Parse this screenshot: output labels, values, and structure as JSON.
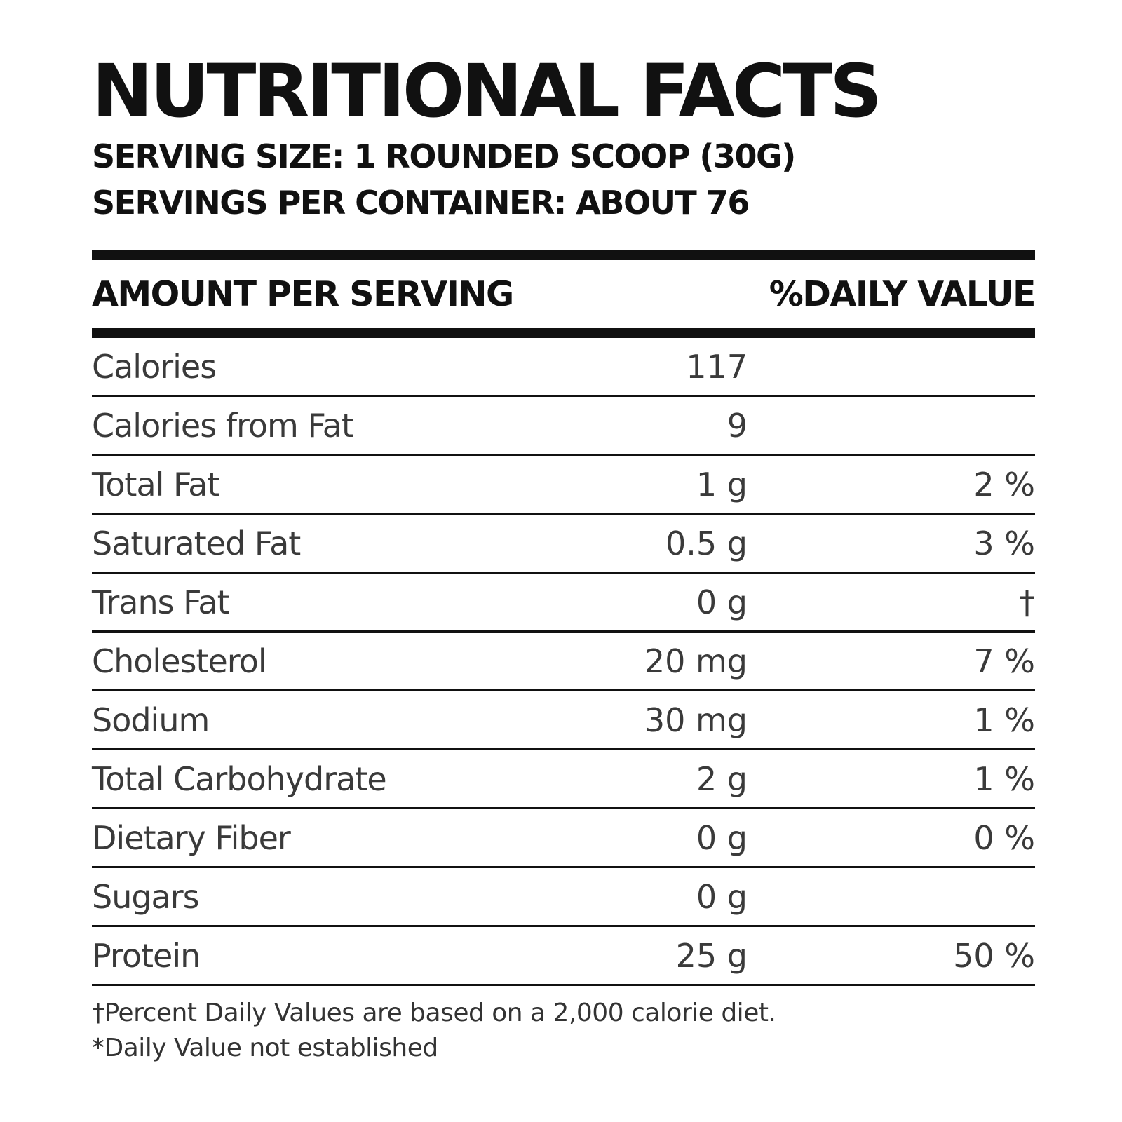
{
  "title": "NUTRITIONAL FACTS",
  "serving_size": "SERVING SIZE: 1 ROUNDED SCOOP (30G)",
  "servings_per_container": "SERVINGS PER CONTAINER: ABOUT 76",
  "header": {
    "amount_label": "AMOUNT PER SERVING",
    "daily_value_label": "%DAILY VALUE"
  },
  "nutrients": [
    {
      "name": "Calories",
      "amount": "117",
      "dv": ""
    },
    {
      "name": "Calories from Fat",
      "amount": "9",
      "dv": ""
    },
    {
      "name": "Total Fat",
      "amount": "1 g",
      "dv": "2 %"
    },
    {
      "name": "Saturated Fat",
      "amount": "0.5 g",
      "dv": "3 %"
    },
    {
      "name": "Trans Fat",
      "amount": "0 g",
      "dv": "†"
    },
    {
      "name": "Cholesterol",
      "amount": "20 mg",
      "dv": "7 %"
    },
    {
      "name": "Sodium",
      "amount": "30 mg",
      "dv": "1 %"
    },
    {
      "name": "Total Carbohydrate",
      "amount": "2 g",
      "dv": "1 %"
    },
    {
      "name": "Dietary Fiber",
      "amount": "0 g",
      "dv": "0 %"
    },
    {
      "name": "Sugars",
      "amount": "0 g",
      "dv": ""
    },
    {
      "name": "Protein",
      "amount": "25 g",
      "dv": "50 %"
    }
  ],
  "footnotes": {
    "percent_note": "†Percent Daily Values are based on a 2,000 calorie diet.",
    "not_established": "*Daily Value not established"
  }
}
